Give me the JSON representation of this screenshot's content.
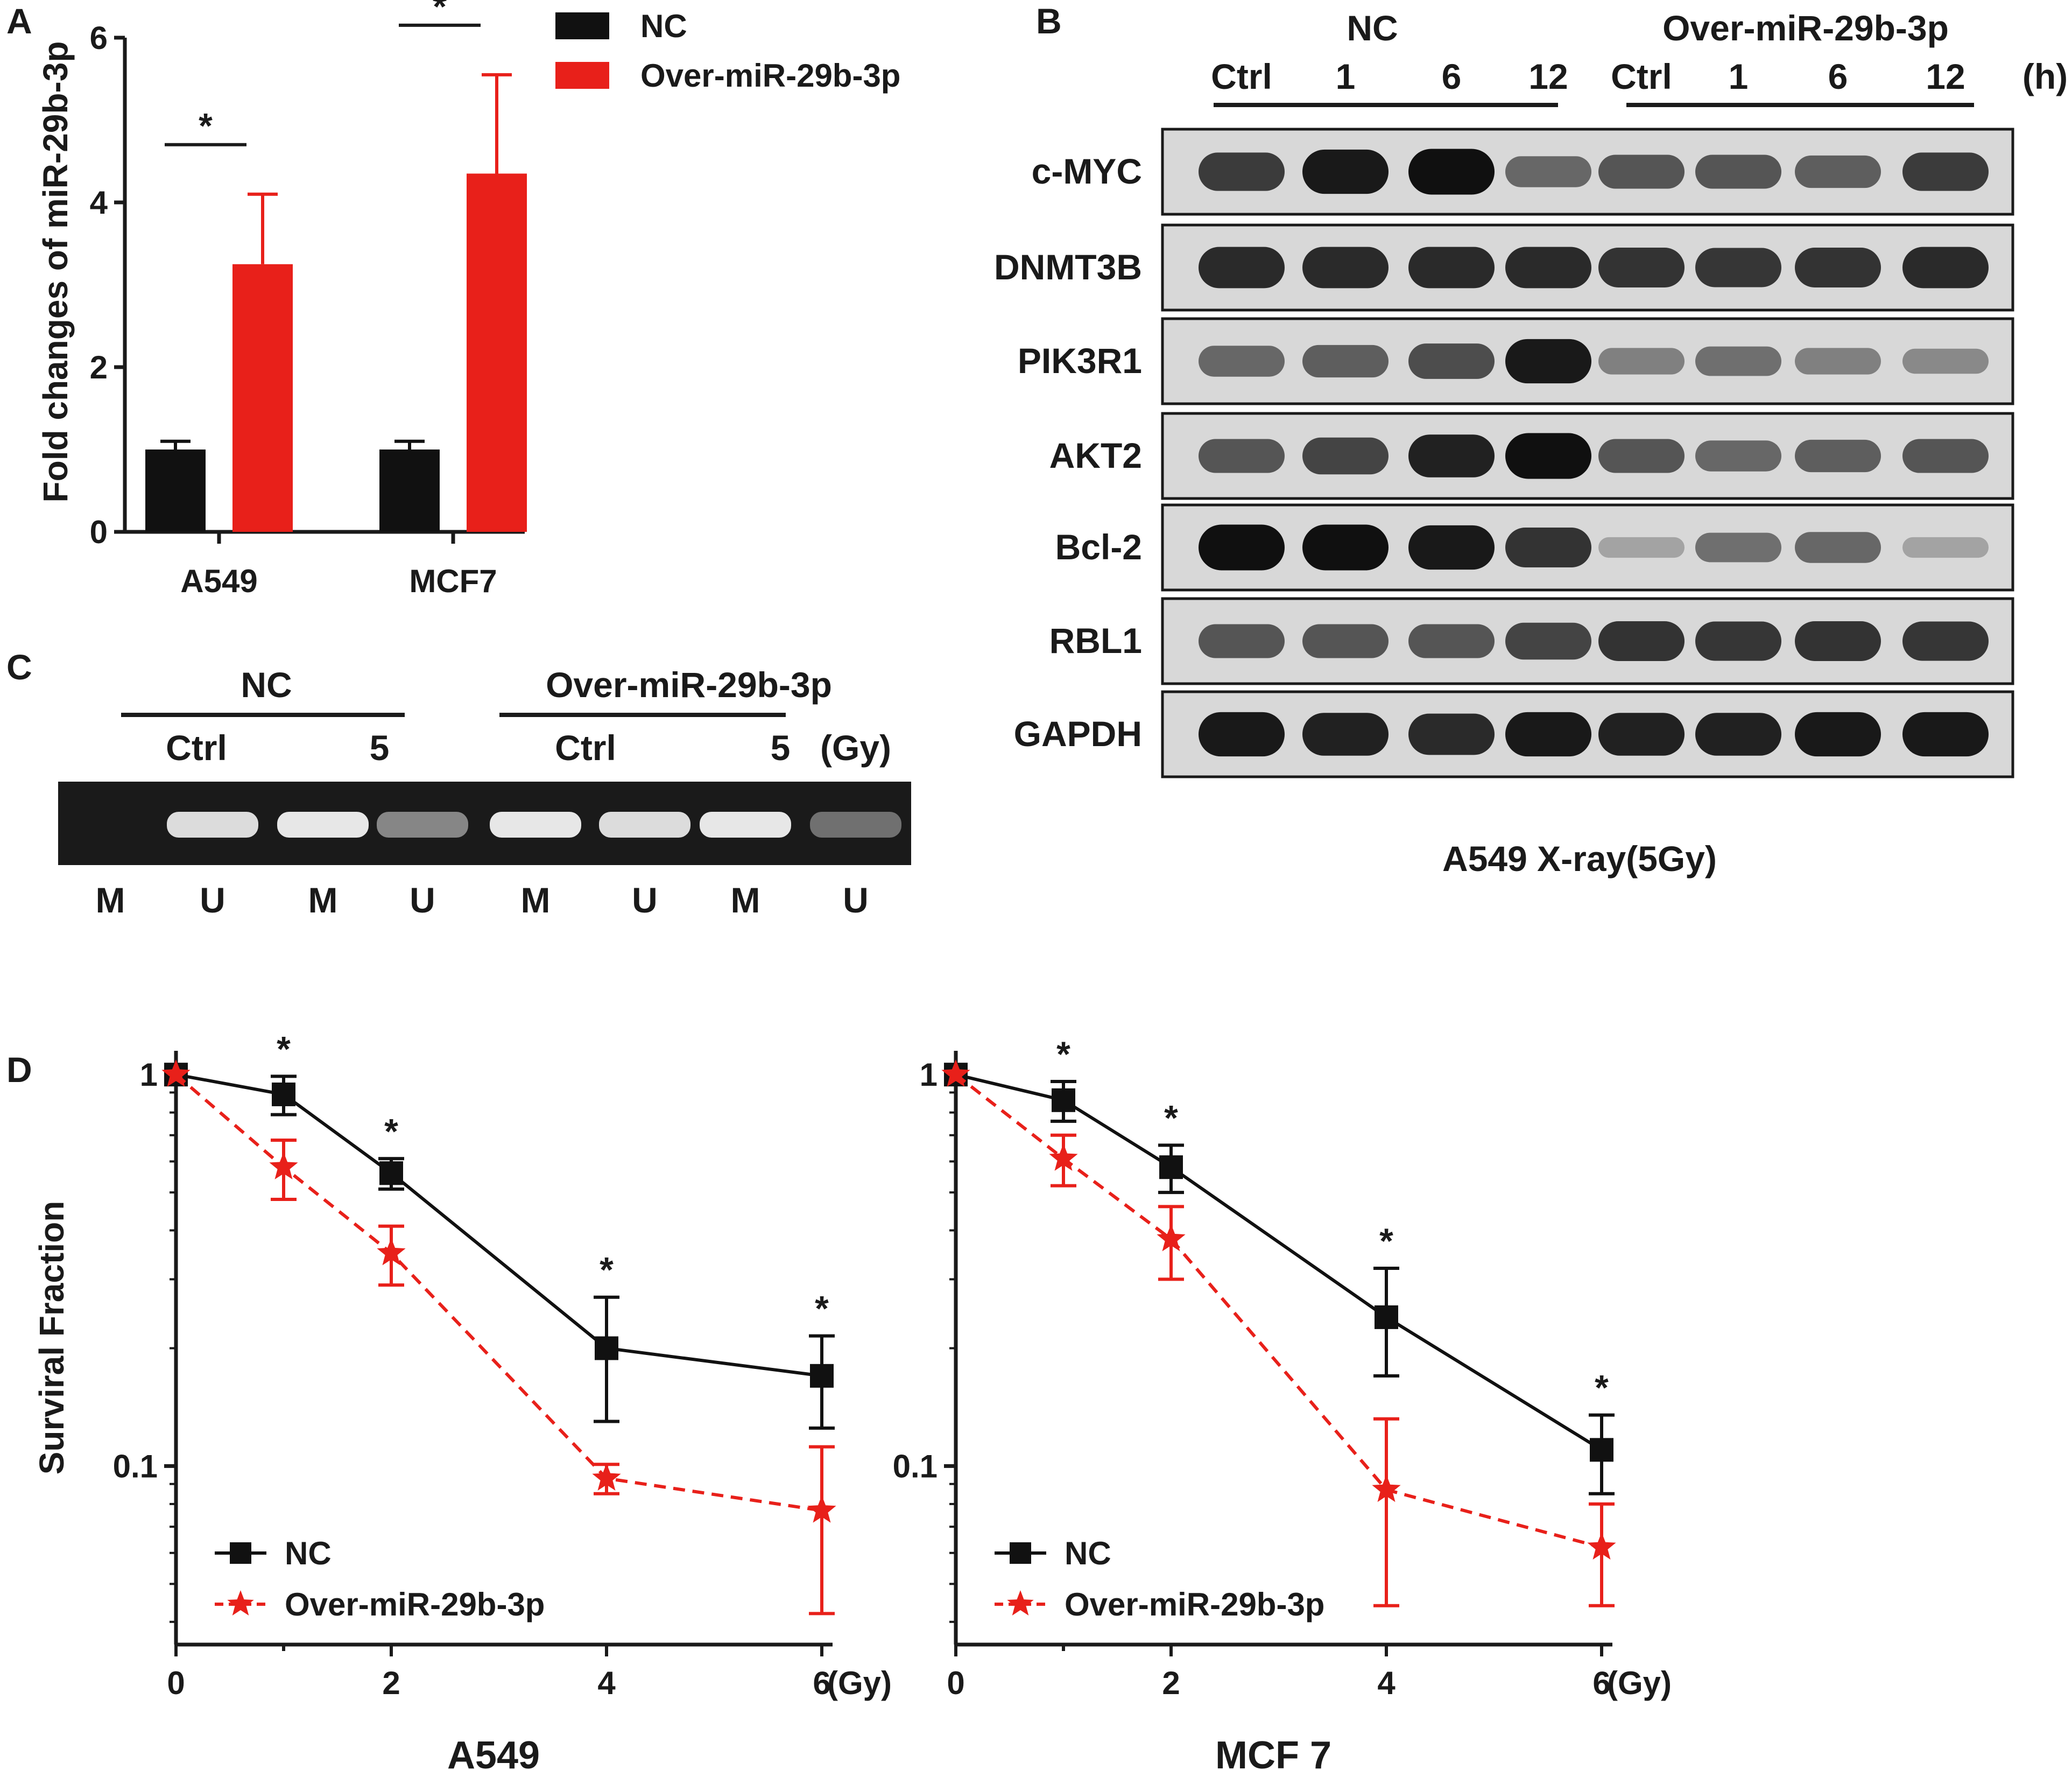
{
  "panels": {
    "a": "A",
    "b": "B",
    "c": "C",
    "d": "D"
  },
  "colors": {
    "nc": "#111111",
    "over": "#e8201a",
    "blot_bg": "#d8d8d8",
    "gel_bg": "#1a1a1a"
  },
  "panel_b": {
    "group_nc": "NC",
    "group_over": "Over-miR-29b-3p",
    "time_labels": [
      "Ctrl",
      "1",
      "6",
      "12",
      "Ctrl",
      "1",
      "6",
      "12"
    ],
    "time_unit": "(h)",
    "rows": [
      {
        "label": "c-MYC",
        "intensity": [
          0.75,
          0.95,
          1.0,
          0.5,
          0.6,
          0.6,
          0.55,
          0.75
        ]
      },
      {
        "label": "DNMT3B",
        "intensity": [
          0.85,
          0.85,
          0.85,
          0.85,
          0.8,
          0.78,
          0.8,
          0.85
        ]
      },
      {
        "label": "PIK3R1",
        "intensity": [
          0.5,
          0.55,
          0.65,
          0.95,
          0.35,
          0.45,
          0.35,
          0.3
        ]
      },
      {
        "label": "AKT2",
        "intensity": [
          0.6,
          0.7,
          0.9,
          1.0,
          0.6,
          0.5,
          0.55,
          0.6
        ]
      },
      {
        "label": "Bcl-2",
        "intensity": [
          1.0,
          1.0,
          0.95,
          0.8,
          0.15,
          0.45,
          0.5,
          0.15
        ]
      },
      {
        "label": "RBL1",
        "intensity": [
          0.6,
          0.6,
          0.6,
          0.7,
          0.8,
          0.78,
          0.8,
          0.78
        ]
      },
      {
        "label": "GAPDH",
        "intensity": [
          0.95,
          0.9,
          0.85,
          0.95,
          0.9,
          0.9,
          0.95,
          0.95
        ]
      }
    ],
    "caption": "A549  X-ray(5Gy)"
  },
  "panel_c": {
    "group_nc": "NC",
    "group_over": "Over-miR-29b-3p",
    "dose_labels": [
      "Ctrl",
      "5",
      "Ctrl",
      "5"
    ],
    "dose_unit": "(Gy)",
    "lane_labels": [
      "M",
      "U",
      "M",
      "U",
      "M",
      "U",
      "M",
      "U"
    ],
    "band_intensity": [
      0.0,
      0.9,
      0.95,
      0.5,
      0.95,
      0.9,
      0.95,
      0.4
    ]
  },
  "chart_data": [
    {
      "type": "bar",
      "categories": [
        "A549",
        "MCF7"
      ],
      "series": [
        {
          "name": "NC",
          "values": [
            1.0,
            1.0
          ],
          "errors": [
            0.1,
            0.1
          ],
          "color": "#111111"
        },
        {
          "name": "Over-miR-29b-3p",
          "values": [
            3.25,
            4.35
          ],
          "errors": [
            0.85,
            1.2
          ],
          "color": "#e8201a"
        }
      ],
      "ylabel": "Fold changes of miR-29b-3p",
      "ylim": [
        0,
        6
      ],
      "yticks": [
        0,
        2,
        4,
        6
      ],
      "significance": "*",
      "legend": "top-right"
    },
    {
      "type": "line",
      "x": [
        0,
        1,
        2,
        4,
        6
      ],
      "xticks": [
        "0",
        "2",
        "4",
        "6"
      ],
      "xunit": "(Gy)",
      "series": [
        {
          "name": "NC",
          "values": [
            1.0,
            0.89,
            0.56,
            0.2,
            0.17
          ],
          "errors_up": [
            0,
            0.1,
            0.05,
            0.07,
            0.045
          ],
          "errors_down": [
            0,
            0.1,
            0.05,
            0.07,
            0.045
          ],
          "color": "#111111",
          "marker": "square",
          "dash": "solid"
        },
        {
          "name": "Over-miR-29b-3p",
          "values": [
            1.0,
            0.58,
            0.35,
            0.093,
            0.077
          ],
          "errors_up": [
            0,
            0.1,
            0.06,
            0.008,
            0.035
          ],
          "errors_down": [
            0,
            0.1,
            0.06,
            0.008,
            0.035
          ],
          "color": "#e8201a",
          "marker": "star",
          "dash": "dashed"
        }
      ],
      "significance_x": [
        1,
        2,
        4,
        6
      ],
      "ylabel": "Surviral Fraction",
      "yscale": "log",
      "ylim": [
        0.035,
        1.15
      ],
      "yticks": [
        "0.1",
        "1"
      ],
      "xlim": [
        0,
        6
      ],
      "cell_line": "A549",
      "legend": "bottom-left"
    },
    {
      "type": "line",
      "x": [
        0,
        1,
        2,
        4,
        6
      ],
      "xticks": [
        "0",
        "2",
        "4",
        "6"
      ],
      "xunit": "(Gy)",
      "series": [
        {
          "name": "NC",
          "values": [
            1.0,
            0.86,
            0.58,
            0.24,
            0.11
          ],
          "errors_up": [
            0,
            0.1,
            0.08,
            0.08,
            0.025
          ],
          "errors_down": [
            0,
            0.1,
            0.08,
            0.07,
            0.025
          ],
          "color": "#111111",
          "marker": "square",
          "dash": "solid"
        },
        {
          "name": "Over-miR-29b-3p",
          "values": [
            1.0,
            0.61,
            0.38,
            0.087,
            0.062
          ],
          "errors_up": [
            0,
            0.09,
            0.08,
            0.045,
            0.018
          ],
          "errors_down": [
            0,
            0.09,
            0.08,
            0.043,
            0.018
          ],
          "color": "#e8201a",
          "marker": "star",
          "dash": "dashed"
        }
      ],
      "significance_x": [
        1,
        2,
        4,
        6
      ],
      "ylabel": "",
      "yscale": "log",
      "ylim": [
        0.035,
        1.15
      ],
      "yticks": [
        "0.1",
        "1"
      ],
      "xlim": [
        0,
        6
      ],
      "cell_line": "MCF 7",
      "legend": "bottom-left"
    }
  ]
}
